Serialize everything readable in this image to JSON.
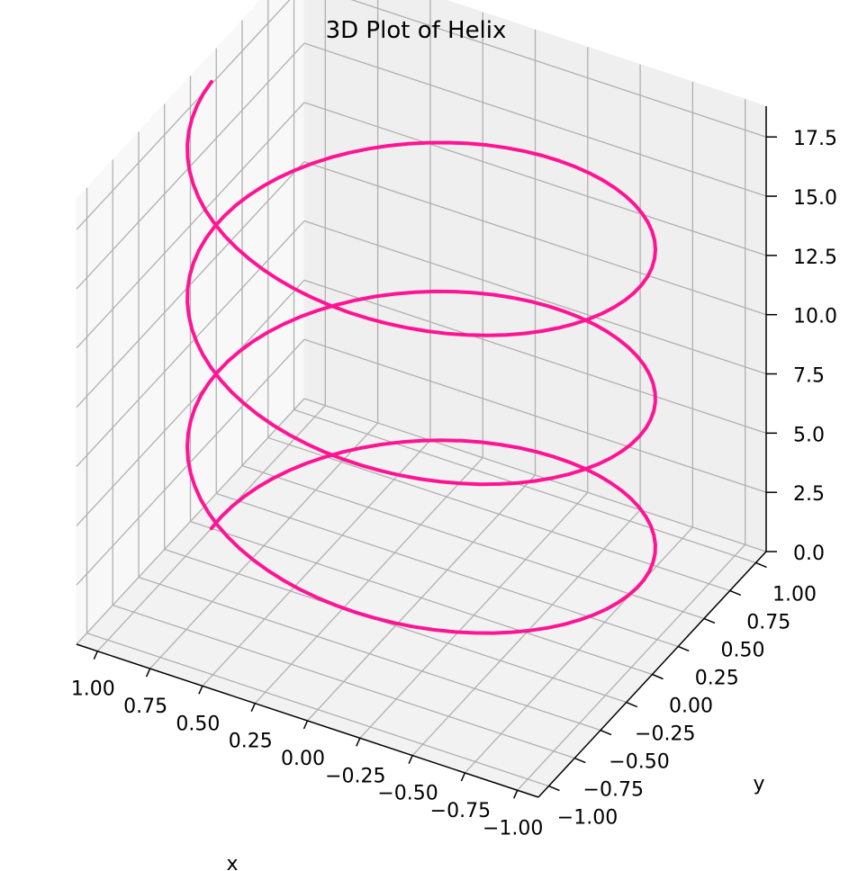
{
  "chart_data": {
    "type": "line3d",
    "title": "3D Plot of Helix",
    "xlabel": "x",
    "ylabel": "y",
    "zlabel": "",
    "xlim": [
      -1.1,
      1.1
    ],
    "ylim": [
      -1.1,
      1.1
    ],
    "zlim": [
      0,
      18.8
    ],
    "xticks": [
      "−1.00",
      "−0.75",
      "−0.50",
      "−0.25",
      "0.00",
      "0.25",
      "0.50",
      "0.75",
      "1.00"
    ],
    "yticks": [
      "−1.00",
      "−0.75",
      "−0.50",
      "−0.25",
      "0.00",
      "0.25",
      "0.50",
      "0.75",
      "1.00"
    ],
    "zticks": [
      "0.0",
      "2.5",
      "5.0",
      "7.5",
      "10.0",
      "12.5",
      "15.0",
      "17.5"
    ],
    "grid": true,
    "series": [
      {
        "kind": "helix",
        "x": "cos(t)",
        "y": "sin(t)",
        "z": "t",
        "t_range": [
          0,
          18.85
        ],
        "color": "#ff1493"
      }
    ]
  }
}
